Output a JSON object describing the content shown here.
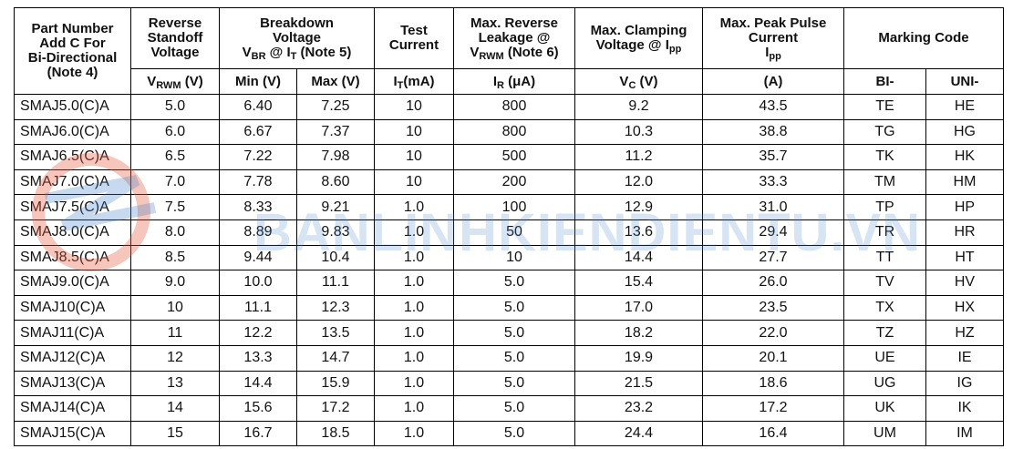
{
  "header": {
    "top": [
      [
        [
          "Part Number"
        ],
        [
          "Add C For"
        ],
        [
          "Bi-Directional"
        ],
        [
          "(Note 4)"
        ]
      ],
      [
        [
          "Reverse"
        ],
        [
          "Standoff"
        ],
        [
          "Voltage"
        ]
      ],
      [
        [
          "Breakdown"
        ],
        [
          "Voltage"
        ],
        [
          "V",
          "BR",
          " @ I",
          "T",
          " (Note 5)"
        ]
      ],
      [
        [
          "Test"
        ],
        [
          "Current"
        ]
      ],
      [
        [
          "Max. Reverse"
        ],
        [
          "Leakage @"
        ],
        [
          "V",
          "RWM",
          " (Note 6)"
        ]
      ],
      [
        [
          "Max. Clamping"
        ],
        [
          "Voltage @ I",
          "pp"
        ]
      ],
      [
        [
          "Max. Peak Pulse"
        ],
        [
          "Current"
        ],
        [
          "I",
          "pp"
        ]
      ],
      [
        [
          "Marking Code"
        ]
      ]
    ],
    "units": [
      [
        "V",
        "RWM",
        " (V)"
      ],
      [
        "Min (V)"
      ],
      [
        "Max (V)"
      ],
      [
        "I",
        "T",
        "(mA)"
      ],
      [
        "I",
        "R",
        " (μA)"
      ],
      [
        "V",
        "C",
        " (V)"
      ],
      [
        "(A)"
      ],
      [
        "BI-"
      ],
      [
        "UNI-"
      ]
    ]
  },
  "table": {
    "rows": [
      [
        "SMAJ5.0(C)A",
        "5.0",
        "6.40",
        "7.25",
        "10",
        "800",
        "9.2",
        "43.5",
        "TE",
        "HE"
      ],
      [
        "SMAJ6.0(C)A",
        "6.0",
        "6.67",
        "7.37",
        "10",
        "800",
        "10.3",
        "38.8",
        "TG",
        "HG"
      ],
      [
        "SMAJ6.5(C)A",
        "6.5",
        "7.22",
        "7.98",
        "10",
        "500",
        "11.2",
        "35.7",
        "TK",
        "HK"
      ],
      [
        "SMAJ7.0(C)A",
        "7.0",
        "7.78",
        "8.60",
        "10",
        "200",
        "12.0",
        "33.3",
        "TM",
        "HM"
      ],
      [
        "SMAJ7.5(C)A",
        "7.5",
        "8.33",
        "9.21",
        "1.0",
        "100",
        "12.9",
        "31.0",
        "TP",
        "HP"
      ],
      [
        "SMAJ8.0(C)A",
        "8.0",
        "8.89",
        "9.83",
        "1.0",
        "50",
        "13.6",
        "29.4",
        "TR",
        "HR"
      ],
      [
        "SMAJ8.5(C)A",
        "8.5",
        "9.44",
        "10.4",
        "1.0",
        "10",
        "14.4",
        "27.7",
        "TT",
        "HT"
      ],
      [
        "SMAJ9.0(C)A",
        "9.0",
        "10.0",
        "11.1",
        "1.0",
        "5.0",
        "15.4",
        "26.0",
        "TV",
        "HV"
      ],
      [
        "SMAJ10(C)A",
        "10",
        "11.1",
        "12.3",
        "1.0",
        "5.0",
        "17.0",
        "23.5",
        "TX",
        "HX"
      ],
      [
        "SMAJ11(C)A",
        "11",
        "12.2",
        "13.5",
        "1.0",
        "5.0",
        "18.2",
        "22.0",
        "TZ",
        "HZ"
      ],
      [
        "SMAJ12(C)A",
        "12",
        "13.3",
        "14.7",
        "1.0",
        "5.0",
        "19.9",
        "20.1",
        "UE",
        "IE"
      ],
      [
        "SMAJ13(C)A",
        "13",
        "14.4",
        "15.9",
        "1.0",
        "5.0",
        "21.5",
        "18.6",
        "UG",
        "IG"
      ],
      [
        "SMAJ14(C)A",
        "14",
        "15.6",
        "17.2",
        "1.0",
        "5.0",
        "23.2",
        "17.2",
        "UK",
        "IK"
      ],
      [
        "SMAJ15(C)A",
        "15",
        "16.7",
        "18.5",
        "1.0",
        "5.0",
        "24.4",
        "16.4",
        "UM",
        "IM"
      ]
    ]
  },
  "watermark": "BANLINHKIENDIENTU.VN"
}
